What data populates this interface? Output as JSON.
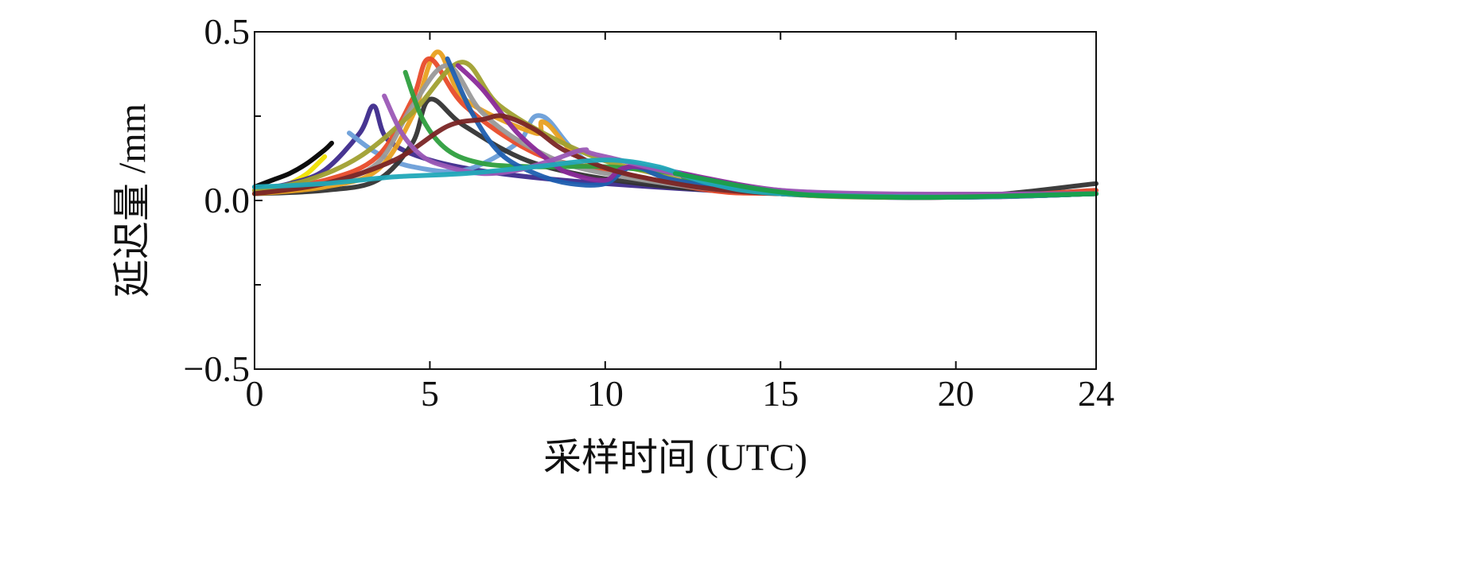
{
  "chart_data": {
    "type": "line",
    "xlabel": "采样时间 (UTC)",
    "ylabel": "延迟量 /mm",
    "xlim": [
      0,
      24
    ],
    "ylim": [
      -0.5,
      0.5
    ],
    "x_ticks": [
      0,
      5,
      10,
      15,
      20,
      24
    ],
    "x_tick_labels": [
      "0",
      "5",
      "10",
      "15",
      "20",
      "24"
    ],
    "y_ticks": [
      -0.5,
      0.0,
      0.5
    ],
    "y_tick_labels": [
      "−0.5",
      "0.0",
      "0.5"
    ],
    "y_minor_ticks": [
      -0.25,
      0.25
    ],
    "grid": false,
    "legend": "none",
    "series": [
      {
        "color": "#000000",
        "x": [
          0,
          0.5,
          1,
          1.5,
          2,
          2.2
        ],
        "y": [
          0.04,
          0.06,
          0.08,
          0.11,
          0.15,
          0.17
        ]
      },
      {
        "color": "#f0e000",
        "x": [
          0,
          0.5,
          1,
          1.5,
          2
        ],
        "y": [
          0.02,
          0.03,
          0.05,
          0.08,
          0.13
        ]
      },
      {
        "color": "#3d2a8c",
        "x": [
          0,
          1,
          2,
          3,
          3.4,
          3.8,
          5,
          7,
          10,
          15,
          20,
          24
        ],
        "y": [
          0.03,
          0.05,
          0.09,
          0.2,
          0.28,
          0.18,
          0.12,
          0.08,
          0.05,
          0.02,
          0.01,
          0.02
        ]
      },
      {
        "color": "#6a9ed8",
        "x": [
          2.7,
          3.5,
          4.5,
          6,
          7.5,
          8.2,
          10,
          15,
          20,
          24
        ],
        "y": [
          0.2,
          0.14,
          0.1,
          0.09,
          0.17,
          0.25,
          0.09,
          0.02,
          0.01,
          0.03
        ]
      },
      {
        "color": "#333333",
        "x": [
          0,
          2,
          3.5,
          4.5,
          5,
          6,
          8,
          11,
          15,
          20,
          24
        ],
        "y": [
          0.02,
          0.03,
          0.06,
          0.17,
          0.3,
          0.22,
          0.11,
          0.05,
          0.02,
          0.01,
          0.05
        ]
      },
      {
        "color": "#e8a020",
        "x": [
          0,
          2,
          3.5,
          4.5,
          5.2,
          6,
          8,
          8.3,
          10,
          15,
          20,
          24
        ],
        "y": [
          0.02,
          0.04,
          0.09,
          0.25,
          0.44,
          0.3,
          0.2,
          0.23,
          0.09,
          0.02,
          0.01,
          0.02
        ]
      },
      {
        "color": "#e84b2a",
        "x": [
          0,
          2,
          3.5,
          4.5,
          5,
          6,
          8,
          10,
          13,
          15,
          20,
          24
        ],
        "y": [
          0.03,
          0.06,
          0.13,
          0.3,
          0.42,
          0.28,
          0.14,
          0.09,
          0.03,
          0.02,
          0.01,
          0.03
        ]
      },
      {
        "color": "#999999",
        "x": [
          0,
          2,
          3.5,
          4.5,
          5.5,
          6.5,
          8,
          10,
          15,
          24
        ],
        "y": [
          0.03,
          0.05,
          0.11,
          0.28,
          0.4,
          0.26,
          0.15,
          0.08,
          0.02,
          0.02
        ]
      },
      {
        "color": "#a0a030",
        "x": [
          0,
          1.5,
          3,
          4.5,
          5.9,
          7,
          9,
          11,
          15,
          24
        ],
        "y": [
          0.03,
          0.06,
          0.13,
          0.26,
          0.41,
          0.28,
          0.16,
          0.09,
          0.02,
          0.02
        ]
      },
      {
        "color": "#2e9f3e",
        "x": [
          4.3,
          4.8,
          5.5,
          6.5,
          8,
          10,
          12,
          12.5,
          15,
          20,
          24
        ],
        "y": [
          0.38,
          0.24,
          0.15,
          0.11,
          0.1,
          0.1,
          0.08,
          0.06,
          0.02,
          0.01,
          0.02
        ]
      },
      {
        "color": "#1f5fb0",
        "x": [
          5.5,
          6.2,
          7,
          8,
          9,
          10,
          10.8,
          12,
          15,
          20,
          24
        ],
        "y": [
          0.42,
          0.26,
          0.14,
          0.08,
          0.05,
          0.05,
          0.1,
          0.06,
          0.02,
          0.01,
          0.02
        ]
      },
      {
        "color": "#8a2a9a",
        "x": [
          5.8,
          6.5,
          7.5,
          8.5,
          9,
          10,
          11,
          15,
          20,
          24
        ],
        "y": [
          0.4,
          0.33,
          0.2,
          0.11,
          0.08,
          0.06,
          0.1,
          0.03,
          0.01,
          0.02
        ]
      },
      {
        "color": "#7a2525",
        "x": [
          0,
          2,
          4,
          5.5,
          6.5,
          7.1,
          8,
          9,
          11,
          15,
          24
        ],
        "y": [
          0.02,
          0.05,
          0.12,
          0.22,
          0.24,
          0.25,
          0.21,
          0.14,
          0.07,
          0.02,
          0.02
        ]
      },
      {
        "color": "#9b59b6",
        "x": [
          3.7,
          4.2,
          4.8,
          5.5,
          6.5,
          7.5,
          8.5,
          9.4,
          10,
          15,
          24
        ],
        "y": [
          0.31,
          0.2,
          0.13,
          0.1,
          0.08,
          0.09,
          0.12,
          0.15,
          0.13,
          0.03,
          0.02
        ]
      },
      {
        "color": "#20a8b8",
        "x": [
          0,
          2,
          4,
          6,
          8,
          10,
          11.5,
          13,
          15,
          20,
          24
        ],
        "y": [
          0.04,
          0.05,
          0.07,
          0.08,
          0.1,
          0.12,
          0.1,
          0.05,
          0.02,
          0.01,
          0.02
        ]
      },
      {
        "color": "#18a048",
        "x": [
          12,
          13,
          14,
          15,
          16,
          18,
          20,
          24
        ],
        "y": [
          0.08,
          0.06,
          0.04,
          0.025,
          0.015,
          0.01,
          0.01,
          0.02
        ]
      }
    ]
  }
}
